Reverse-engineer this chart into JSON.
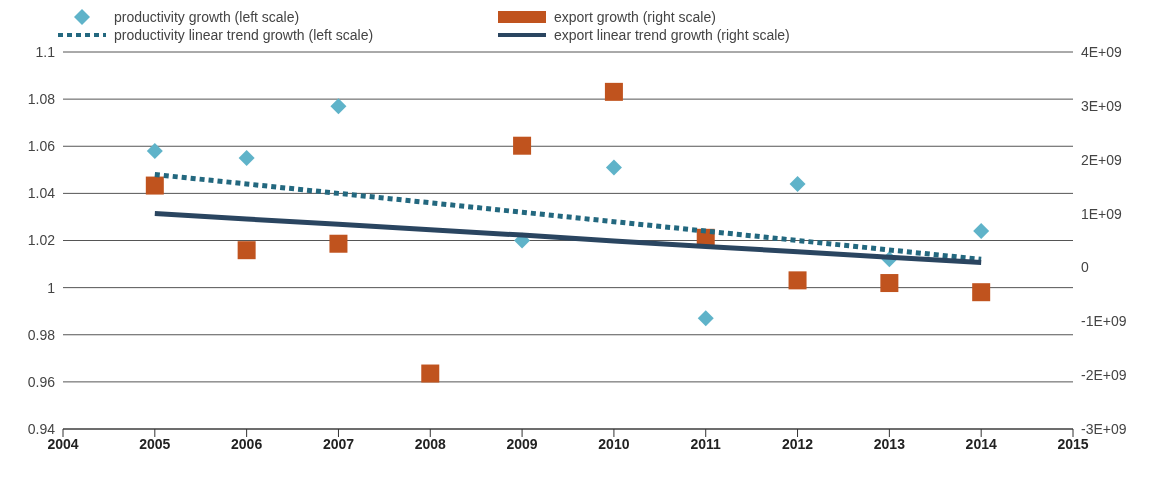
{
  "chart_data": {
    "type": "scatter",
    "legend": "top left",
    "grid": "y",
    "xlim": [
      2004,
      2015
    ],
    "xticks": [
      2004,
      2005,
      2006,
      2007,
      2008,
      2009,
      2010,
      2011,
      2012,
      2013,
      2014,
      2015
    ],
    "ylim": [
      0.94,
      1.1
    ],
    "yticks": [
      0.94,
      0.96,
      0.98,
      1,
      1.02,
      1.04,
      1.06,
      1.08,
      1.1
    ],
    "y2lim": [
      -3000000000,
      4000000000
    ],
    "y2ticks": [
      {
        "value": -3000000000,
        "label": "-3E+09"
      },
      {
        "value": -2000000000,
        "label": "-2E+09"
      },
      {
        "value": -1000000000,
        "label": "-1E+09"
      },
      {
        "value": 0,
        "label": "0"
      },
      {
        "value": 1000000000,
        "label": "1E+09"
      },
      {
        "value": 2000000000,
        "label": "2E+09"
      },
      {
        "value": 3000000000,
        "label": "3E+09"
      },
      {
        "value": 4000000000,
        "label": "4E+09"
      }
    ],
    "x": [
      2005,
      2006,
      2007,
      2008,
      2009,
      2010,
      2011,
      2012,
      2013,
      2014
    ],
    "series": [
      {
        "name": "productivity growth (left scale)",
        "type": "scatter",
        "marker": "diamond",
        "color": "#5fb3c9",
        "values": [
          1.058,
          1.055,
          1.077,
          null,
          1.02,
          1.051,
          0.987,
          1.044,
          1.012,
          1.024
        ]
      },
      {
        "name": "export growth (right scale)",
        "type": "scatter",
        "marker": "square",
        "axis": "y2",
        "color": "#c0531e",
        "values": [
          1520000000,
          320000000,
          440000000,
          -1970000000,
          2260000000,
          3260000000,
          550000000,
          -240000000,
          -290000000,
          -460000000
        ]
      },
      {
        "name": "productivity linear trend growth  (left scale)",
        "type": "line",
        "line_style": "dotted",
        "color": "#23687f",
        "values": [
          1.048,
          1.044,
          1.04,
          1.036,
          1.032,
          1.028,
          1.024,
          1.02,
          1.016,
          1.012
        ]
      },
      {
        "name": "export linear trend growth (right scale)",
        "type": "line",
        "line_style": "solid",
        "axis": "y2",
        "color": "#2a4560",
        "values": [
          1000000000,
          900000000,
          800000000,
          700000000,
          600000000,
          490000000,
          390000000,
          290000000,
          190000000,
          90000000
        ]
      }
    ]
  }
}
